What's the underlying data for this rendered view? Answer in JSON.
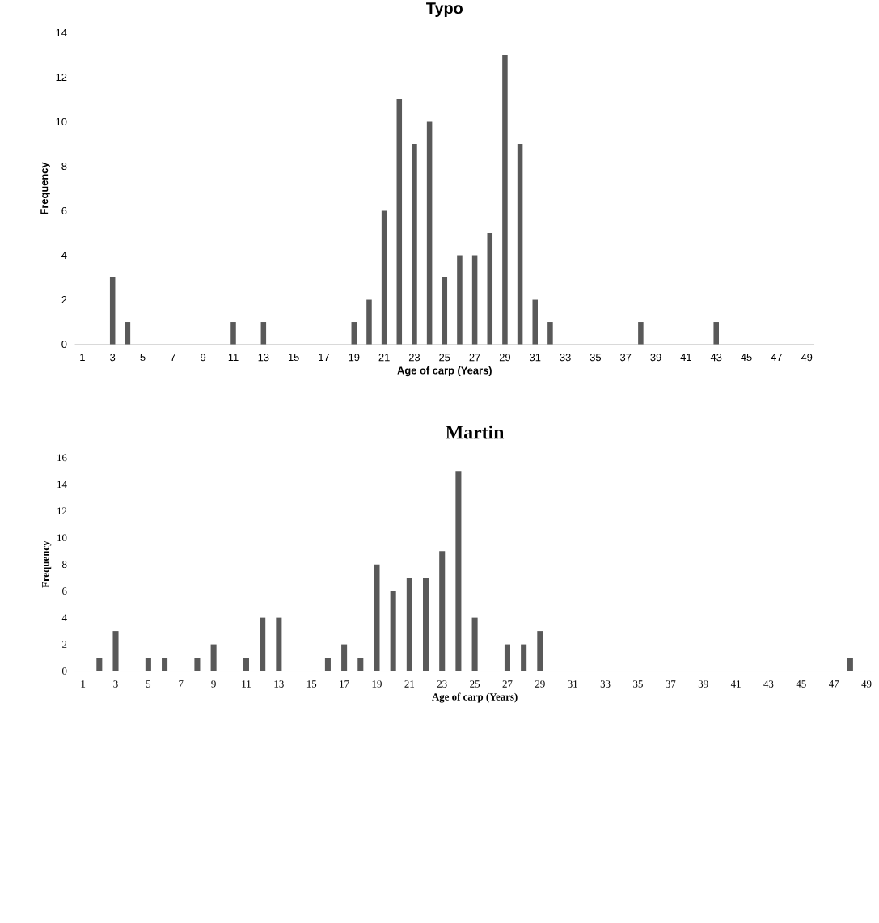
{
  "chart_data": [
    {
      "type": "bar",
      "title": "Typo",
      "xlabel": "Age of carp (Years)",
      "ylabel": "Frequency",
      "categories": [
        "1",
        null,
        "3",
        null,
        "5",
        null,
        "7",
        null,
        "9",
        null,
        "11",
        null,
        "13",
        null,
        "15",
        null,
        "17",
        null,
        "19",
        null,
        "21",
        null,
        "23",
        null,
        "25",
        null,
        "27",
        null,
        "29",
        null,
        "31",
        null,
        "33",
        null,
        "35",
        null,
        "37",
        null,
        "39",
        null,
        "41",
        null,
        "43",
        null,
        "45",
        null,
        "47",
        null,
        "49"
      ],
      "values": [
        0,
        0,
        3,
        1,
        0,
        0,
        0,
        0,
        0,
        0,
        1,
        0,
        1,
        0,
        0,
        0,
        0,
        0,
        1,
        2,
        6,
        11,
        9,
        10,
        3,
        4,
        4,
        5,
        13,
        9,
        2,
        1,
        0,
        0,
        0,
        0,
        0,
        1,
        0,
        0,
        0,
        0,
        1,
        0,
        0,
        0,
        0,
        0,
        0
      ],
      "color": "#595959",
      "ylim": [
        0,
        14
      ],
      "yticks": [
        0,
        2,
        4,
        6,
        8,
        10,
        12,
        14
      ]
    },
    {
      "type": "bar",
      "title": "Martin",
      "xlabel": "Age of carp (Years)",
      "ylabel": "Frequency",
      "categories": [
        "1",
        null,
        "3",
        null,
        "5",
        null,
        "7",
        null,
        "9",
        null,
        "11",
        null,
        "13",
        null,
        "15",
        null,
        "17",
        null,
        "19",
        null,
        "21",
        null,
        "23",
        null,
        "25",
        null,
        "27",
        null,
        "29",
        null,
        "31",
        null,
        "33",
        null,
        "35",
        null,
        "37",
        null,
        "39",
        null,
        "41",
        null,
        "43",
        null,
        "45",
        null,
        "47",
        null,
        "49"
      ],
      "values": [
        0,
        1,
        3,
        0,
        1,
        1,
        0,
        1,
        2,
        0,
        1,
        4,
        4,
        0,
        0,
        1,
        2,
        1,
        8,
        6,
        7,
        7,
        9,
        15,
        4,
        0,
        2,
        2,
        3,
        0,
        0,
        0,
        0,
        0,
        0,
        0,
        0,
        0,
        0,
        0,
        0,
        0,
        0,
        0,
        0,
        0,
        0,
        1,
        0
      ],
      "color": "#595959",
      "ylim": [
        0,
        16
      ],
      "yticks": [
        0,
        2,
        4,
        6,
        8,
        10,
        12,
        14,
        16
      ]
    }
  ]
}
